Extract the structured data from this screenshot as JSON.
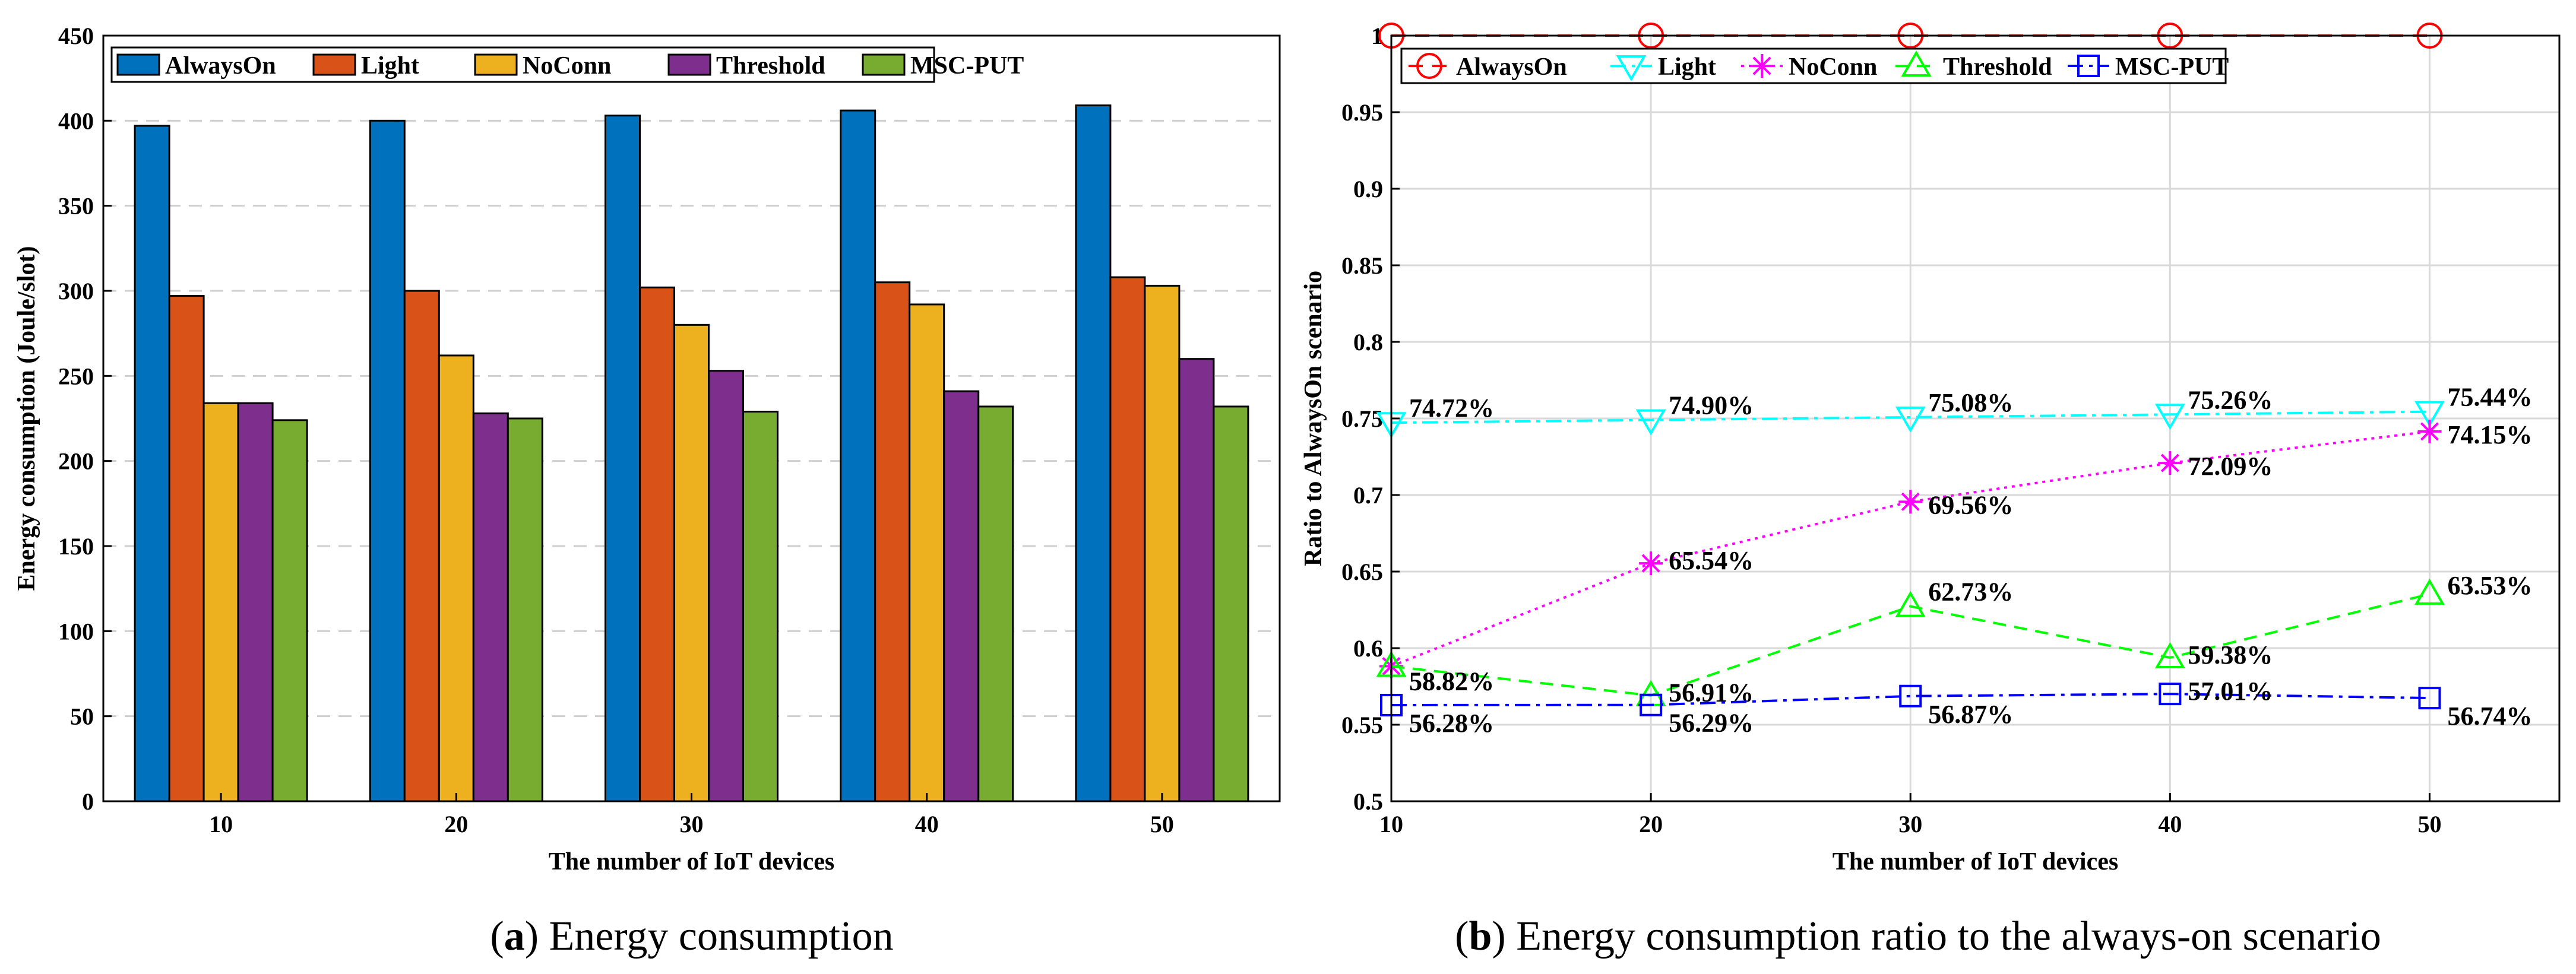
{
  "colors": {
    "AlwaysOn_bar": "#0072BD",
    "Light_bar": "#D95319",
    "NoConn_bar": "#EDB120",
    "Threshold_bar": "#7E2F8E",
    "MSC-PUT_bar": "#77AC30",
    "AlwaysOn_line": "#FF0000",
    "Light_line": "#00FFFF",
    "NoConn_line": "#FF00FF",
    "Threshold_line": "#00FF00",
    "MSC-PUT_line": "#0000FF"
  },
  "captions": {
    "a_label": "a",
    "a_text": " Energy consumption",
    "b_label": "b",
    "b_text": " Energy consumption ratio to the always-on scenario"
  },
  "chart_data": [
    {
      "type": "bar",
      "title": "",
      "xlabel": "The number of IoT devices",
      "ylabel": "Energy consumption (Joule/slot)",
      "categories": [
        "10",
        "20",
        "30",
        "40",
        "50"
      ],
      "ylim": [
        0,
        450
      ],
      "yticks": [
        0,
        50,
        100,
        150,
        200,
        250,
        300,
        350,
        400,
        450
      ],
      "grid": "horizontal dashed",
      "legend_position": "top-left",
      "series": [
        {
          "name": "AlwaysOn",
          "values": [
            397,
            400,
            403,
            406,
            409
          ]
        },
        {
          "name": "Light",
          "values": [
            297,
            300,
            302,
            305,
            308
          ]
        },
        {
          "name": "NoConn",
          "values": [
            234,
            262,
            280,
            292,
            303
          ]
        },
        {
          "name": "Threshold",
          "values": [
            234,
            228,
            253,
            241,
            260
          ]
        },
        {
          "name": "MSC-PUT",
          "values": [
            224,
            225,
            229,
            232,
            232
          ]
        }
      ]
    },
    {
      "type": "line",
      "title": "",
      "xlabel": "The number of IoT devices",
      "ylabel": "Ratio to AlwaysOn scenario",
      "x": [
        10,
        20,
        30,
        40,
        50
      ],
      "xlim": [
        10,
        55
      ],
      "ylim": [
        0.5,
        1
      ],
      "yticks": [
        "0.5",
        "0.55",
        "0.6",
        "0.65",
        "0.7",
        "0.75",
        "0.8",
        "0.85",
        "0.9",
        "0.95",
        "1"
      ],
      "xticks": [
        "10",
        "20",
        "30",
        "40",
        "50"
      ],
      "grid": "both",
      "legend_position": "top",
      "series": [
        {
          "name": "AlwaysOn",
          "values": [
            1,
            1,
            1,
            1,
            1
          ],
          "labels": []
        },
        {
          "name": "Light",
          "values": [
            0.7472,
            0.749,
            0.7508,
            0.7526,
            0.7544
          ],
          "labels": [
            "74.72%",
            "74.90%",
            "75.08%",
            "75.26%",
            "75.44%"
          ]
        },
        {
          "name": "NoConn",
          "values": [
            0.5882,
            0.6554,
            0.6956,
            0.7209,
            0.7415
          ],
          "labels": [
            "58.82%",
            "65.54%",
            "69.56%",
            "72.09%",
            "74.15%"
          ]
        },
        {
          "name": "Threshold",
          "values": [
            0.5882,
            0.5691,
            0.6273,
            0.5938,
            0.6353
          ],
          "labels": [
            "58.82%",
            "56.91%",
            "62.73%",
            "59.38%",
            "63.53%"
          ]
        },
        {
          "name": "MSC-PUT",
          "values": [
            0.5628,
            0.5629,
            0.5687,
            0.5701,
            0.5674
          ],
          "labels": [
            "56.28%",
            "56.29%",
            "56.87%",
            "57.01%",
            "56.74%"
          ]
        }
      ]
    }
  ]
}
